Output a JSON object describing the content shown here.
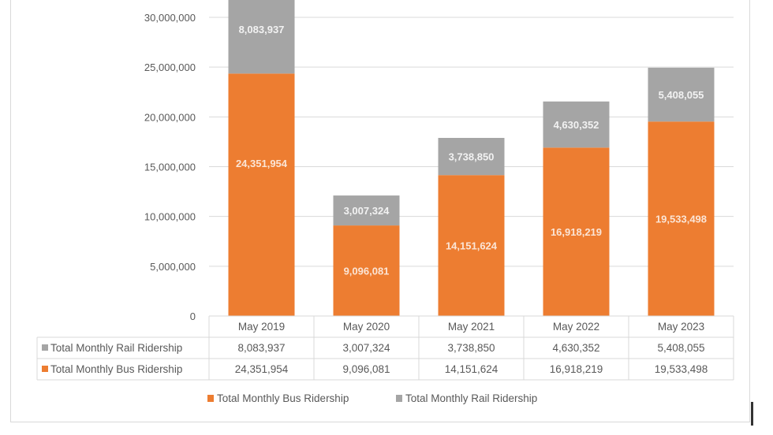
{
  "chart_data": {
    "type": "bar",
    "stacked": true,
    "title": "",
    "xlabel": "",
    "ylabel": "",
    "categories": [
      "May 2019",
      "May 2020",
      "May 2021",
      "May 2022",
      "May 2023"
    ],
    "series": [
      {
        "name": "Total Monthly Bus Ridership",
        "color": "#ed7d31",
        "values": [
          24351954,
          9096081,
          14151624,
          16918219,
          19533498
        ],
        "labels": [
          "24,351,954",
          "9,096,081",
          "14,151,624",
          "16,918,219",
          "19,533,498"
        ]
      },
      {
        "name": "Total Monthly Rail Ridership",
        "color": "#a5a5a5",
        "values": [
          8083937,
          3007324,
          3738850,
          4630352,
          5408055
        ],
        "labels": [
          "8,083,937",
          "3,007,324",
          "3,738,850",
          "4,630,352",
          "5,408,055"
        ]
      }
    ],
    "ylim": [
      0,
      30000000
    ],
    "yticks": [
      0,
      5000000,
      10000000,
      15000000,
      20000000,
      25000000,
      30000000
    ],
    "ytick_labels": [
      "0",
      "5,000,000",
      "10,000,000",
      "15,000,000",
      "20,000,000",
      "25,000,000",
      "30,000,000"
    ],
    "grid": true,
    "data_table": {
      "rows": [
        {
          "name": "Total Monthly Rail Ridership",
          "color": "#a5a5a5",
          "cells": [
            "8,083,937",
            "3,007,324",
            "3,738,850",
            "4,630,352",
            "5,408,055"
          ]
        },
        {
          "name": "Total Monthly Bus Ridership",
          "color": "#ed7d31",
          "cells": [
            "24,351,954",
            "9,096,081",
            "14,151,624",
            "16,918,219",
            "19,533,498"
          ]
        }
      ]
    },
    "legend": {
      "position": "bottom",
      "entries": [
        {
          "name": "Total Monthly Bus Ridership",
          "color": "#ed7d31"
        },
        {
          "name": "Total Monthly Rail Ridership",
          "color": "#a5a5a5"
        }
      ]
    }
  }
}
